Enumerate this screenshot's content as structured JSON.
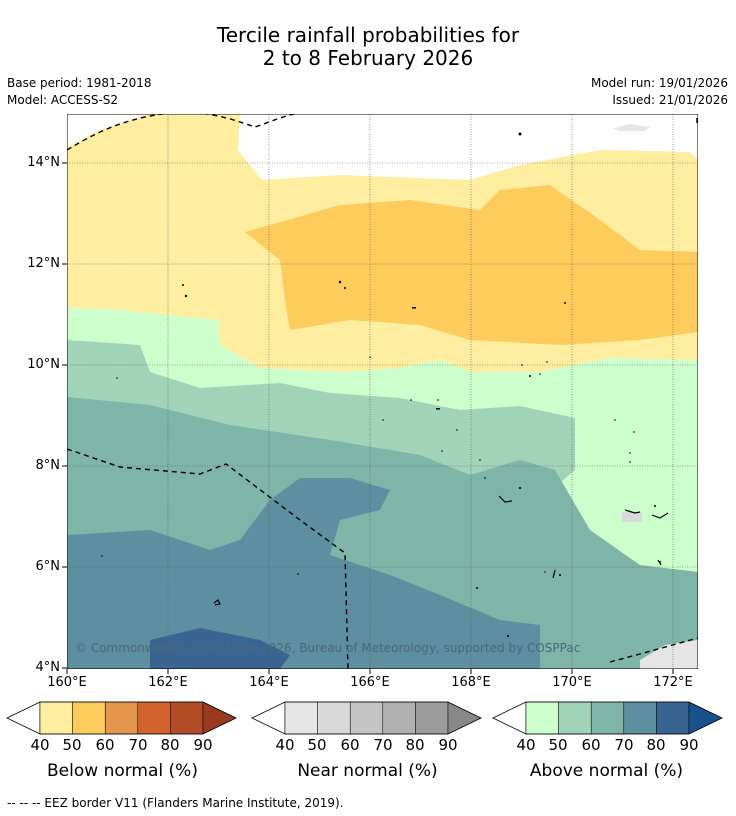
{
  "title": {
    "line1": "Tercile rainfall probabilities for",
    "line2": "2 to 8 February 2026"
  },
  "meta": {
    "base_period": "Base period: 1981-2018",
    "model": "Model: ACCESS-S2",
    "model_run": "Model run: 19/01/2026",
    "issued": "Issued: 21/01/2026"
  },
  "map": {
    "lat_labels": [
      "14°N",
      "12°N",
      "10°N",
      "8°N",
      "6°N",
      "4°N"
    ],
    "lon_labels": [
      "160°E",
      "162°E",
      "164°E",
      "166°E",
      "168°E",
      "170°E",
      "172°E"
    ],
    "copyright": "© Commonwealth of Australia 2026, Bureau of Meteorology, supported by COSPPac"
  },
  "legend": {
    "below": {
      "title": "Below normal (%)",
      "ticks": [
        "40",
        "50",
        "60",
        "70",
        "80",
        "90"
      ],
      "colors": [
        "#ffeda0",
        "#fecc5c",
        "#e3954b",
        "#d2622e",
        "#b14c27",
        "#983a1e"
      ]
    },
    "near": {
      "title": "Near normal (%)",
      "ticks": [
        "40",
        "50",
        "60",
        "70",
        "80",
        "90"
      ],
      "colors": [
        "#e6e6e6",
        "#d9d9d9",
        "#c4c4c4",
        "#b0b0b0",
        "#9c9c9c",
        "#888888"
      ]
    },
    "above": {
      "title": "Above normal (%)",
      "ticks": [
        "40",
        "50",
        "60",
        "70",
        "80",
        "90"
      ],
      "colors": [
        "#ccffcc",
        "#a1d3b9",
        "#7fb4a8",
        "#5d8fa0",
        "#3a6593",
        "#17538a"
      ]
    }
  },
  "footer": "--  --  -- EEZ border V11 (Flanders Marine Institute, 2019)."
}
